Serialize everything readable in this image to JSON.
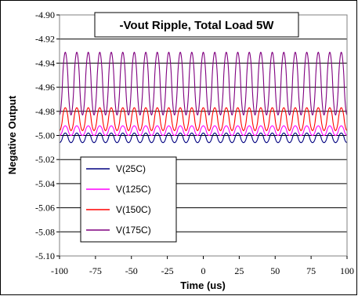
{
  "chart_data": {
    "type": "line",
    "title": "-Vout Ripple, Total Load 5W",
    "xlabel": "Time (us)",
    "ylabel": "Negative Output",
    "xlim": [
      -100,
      100
    ],
    "ylim": [
      -5.1,
      -4.9
    ],
    "x_ticks": [
      "-100",
      "-75",
      "-50",
      "-25",
      "0",
      "25",
      "50",
      "75",
      "100"
    ],
    "y_ticks": [
      "-4.90",
      "-4.92",
      "-4.94",
      "-4.96",
      "-4.98",
      "-5.00",
      "-5.02",
      "-5.04",
      "-5.06",
      "-5.08",
      "-5.10"
    ],
    "grid": "horizontal",
    "legend_position": "bottom-left",
    "series": [
      {
        "name": "V(25C)",
        "color": "#000080",
        "min": -5.006,
        "max": -4.998,
        "period_us": 8.0,
        "phase_us": -96.0
      },
      {
        "name": "V(125C)",
        "color": "#ff00ff",
        "min": -5.0,
        "max": -4.992,
        "period_us": 8.0,
        "phase_us": -96.0
      },
      {
        "name": "V(150C)",
        "color": "#ff0000",
        "min": -4.996,
        "max": -4.977,
        "period_us": 8.0,
        "phase_us": -96.0
      },
      {
        "name": "V(175C)",
        "color": "#800080",
        "min": -4.983,
        "max": -4.931,
        "period_us": 8.0,
        "phase_us": -96.0
      }
    ]
  }
}
